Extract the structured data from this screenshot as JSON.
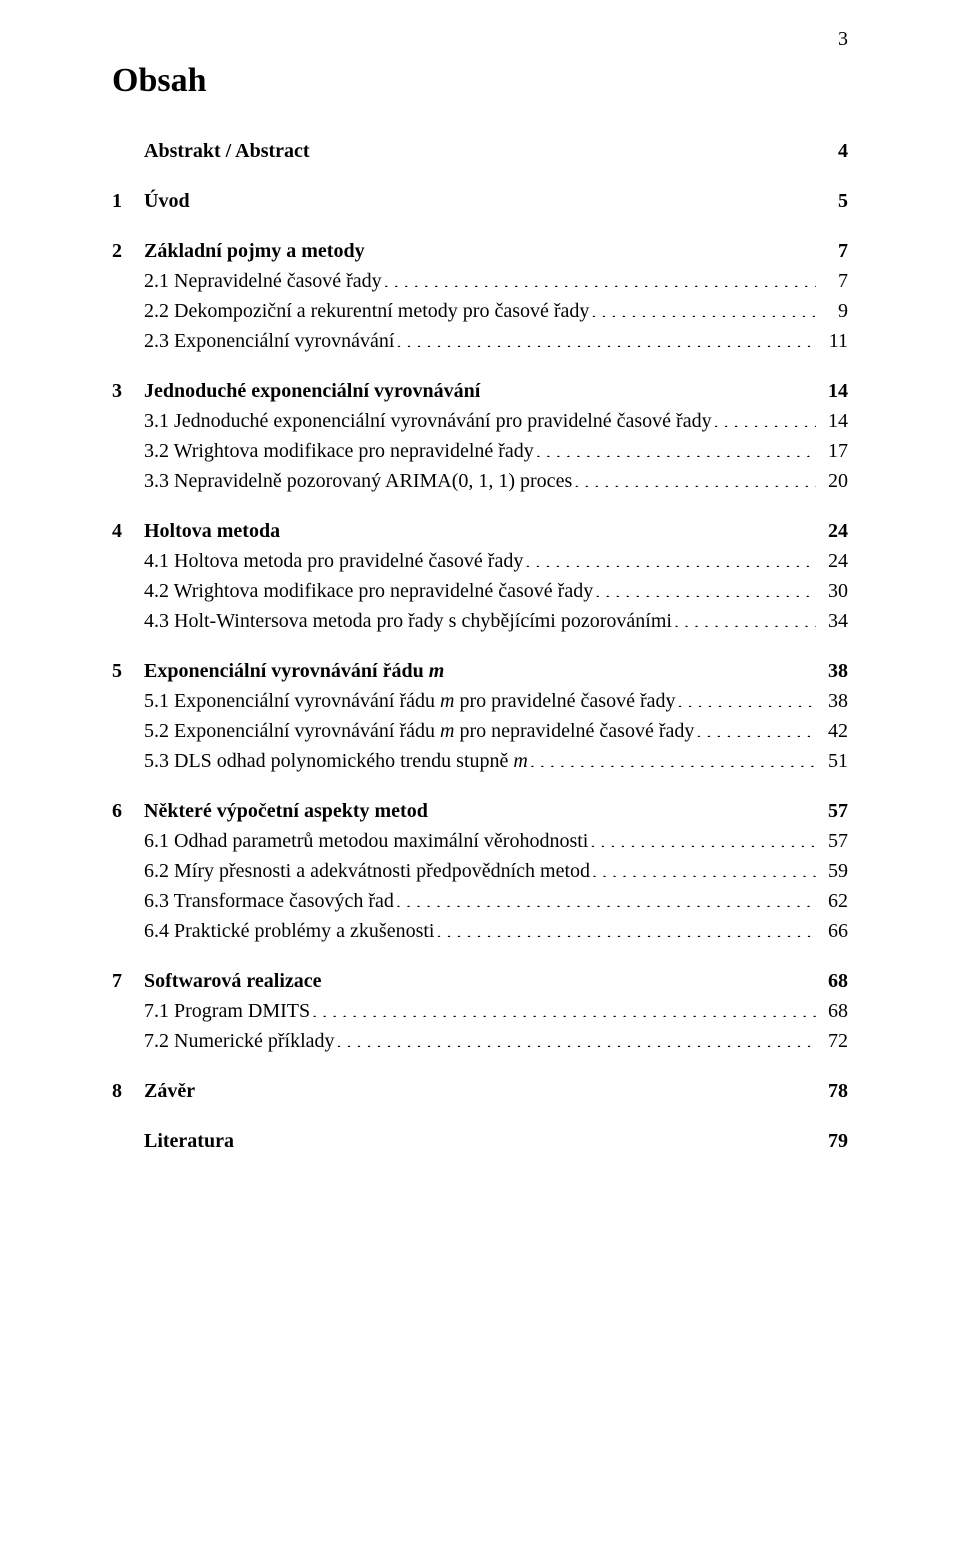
{
  "page_number": "3",
  "title": "Obsah",
  "toc": [
    {
      "type": "group",
      "head": {
        "num": "",
        "label": "Abstrakt / Abstract",
        "page": "4"
      }
    },
    {
      "type": "group",
      "head": {
        "num": "1",
        "label": "Úvod",
        "page": "5"
      }
    },
    {
      "type": "group",
      "head": {
        "num": "2",
        "label": "Základní pojmy a metody",
        "page": "7"
      },
      "items": [
        {
          "num": "2.1",
          "label": " Nepravidelné časové řady",
          "page": "7"
        },
        {
          "num": "2.2",
          "label": " Dekompoziční a rekurentní metody pro časové řady",
          "page": "9"
        },
        {
          "num": "2.3",
          "label": " Exponenciální vyrovnávání",
          "page": "11"
        }
      ]
    },
    {
      "type": "group",
      "head": {
        "num": "3",
        "label": "Jednoduché exponenciální vyrovnávání",
        "page": "14"
      },
      "items": [
        {
          "num": "3.1",
          "label": " Jednoduché exponenciální vyrovnávání pro pravidelné časové řady",
          "page": "14"
        },
        {
          "num": "3.2",
          "label": " Wrightova modifikace pro nepravidelné řady",
          "page": "17"
        },
        {
          "num": "3.3",
          "label": " Nepravidelně pozorovaný ARIMA(0, 1, 1) proces",
          "page": "20"
        }
      ]
    },
    {
      "type": "group",
      "head": {
        "num": "4",
        "label": "Holtova metoda",
        "page": "24"
      },
      "items": [
        {
          "num": "4.1",
          "label": " Holtova metoda pro pravidelné časové řady",
          "page": "24"
        },
        {
          "num": "4.2",
          "label": " Wrightova modifikace pro nepravidelné časové řady",
          "page": "30"
        },
        {
          "num": "4.3",
          "label": " Holt-Wintersova metoda pro řady s chybějícími pozorováními",
          "page": "34"
        }
      ]
    },
    {
      "type": "group",
      "head": {
        "num": "5",
        "label_parts": [
          {
            "text": "Exponenciální vyrovnávání řádu ",
            "italic": false
          },
          {
            "text": "m",
            "italic": true
          }
        ],
        "page": "38"
      },
      "items": [
        {
          "num": "5.1",
          "label_parts": [
            {
              "text": " Exponenciální vyrovnávání řádu ",
              "italic": false
            },
            {
              "text": "m",
              "italic": true
            },
            {
              "text": " pro pravidelné časové řady",
              "italic": false
            }
          ],
          "page": "38"
        },
        {
          "num": "5.2",
          "label_parts": [
            {
              "text": " Exponenciální vyrovnávání řádu ",
              "italic": false
            },
            {
              "text": "m",
              "italic": true
            },
            {
              "text": " pro nepravidelné časové řady",
              "italic": false
            }
          ],
          "page": "42"
        },
        {
          "num": "5.3",
          "label_parts": [
            {
              "text": " DLS odhad polynomického trendu stupně ",
              "italic": false
            },
            {
              "text": "m",
              "italic": true
            }
          ],
          "page": "51"
        }
      ]
    },
    {
      "type": "group",
      "head": {
        "num": "6",
        "label": "Některé výpočetní aspekty metod",
        "page": "57"
      },
      "items": [
        {
          "num": "6.1",
          "label": " Odhad parametrů metodou maximální věrohodnosti",
          "page": "57"
        },
        {
          "num": "6.2",
          "label": " Míry přesnosti a adekvátnosti předpovědních metod",
          "page": "59"
        },
        {
          "num": "6.3",
          "label": " Transformace časových řad",
          "page": "62"
        },
        {
          "num": "6.4",
          "label": " Praktické problémy a zkušenosti",
          "page": "66"
        }
      ]
    },
    {
      "type": "group",
      "head": {
        "num": "7",
        "label": "Softwarová realizace",
        "page": "68"
      },
      "items": [
        {
          "num": "7.1",
          "label": " Program DMITS",
          "page": "68"
        },
        {
          "num": "7.2",
          "label": " Numerické příklady",
          "page": "72"
        }
      ]
    },
    {
      "type": "group",
      "head": {
        "num": "8",
        "label": "Závěr",
        "page": "78"
      }
    },
    {
      "type": "group",
      "head": {
        "num": "",
        "label": "Literatura",
        "page": "79"
      }
    }
  ]
}
